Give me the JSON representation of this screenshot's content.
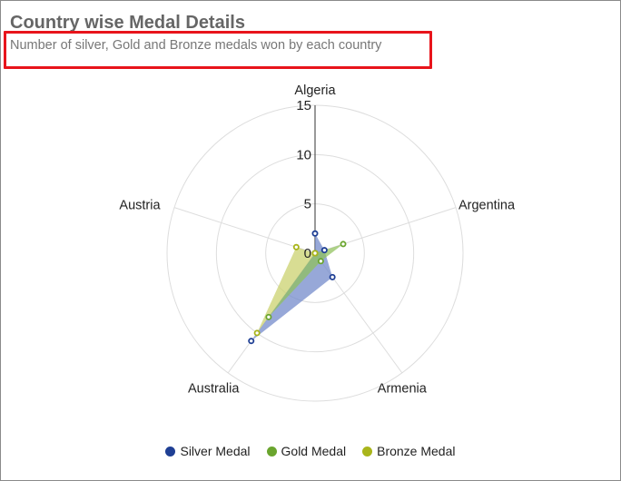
{
  "chart_data": {
    "type": "radar",
    "title": "Country wise Medal Details",
    "subtitle": "Number of silver, Gold and Bronze medals won by each country",
    "categories": [
      "Algeria",
      "Argentina",
      "Armenia",
      "Australia",
      "Austria"
    ],
    "radial_axis": {
      "min": 0,
      "max": 15,
      "ticks": [
        0,
        5,
        10,
        15
      ]
    },
    "grid": true,
    "legend_position": "bottom",
    "series": [
      {
        "name": "Silver Medal",
        "color": "#1f3f94",
        "fill": "#6f87c9",
        "values": [
          2,
          1,
          3,
          11,
          0
        ]
      },
      {
        "name": "Gold Medal",
        "color": "#6aa52e",
        "fill": "#8fc05a",
        "values": [
          0,
          3,
          1,
          8,
          0
        ]
      },
      {
        "name": "Bronze Medal",
        "color": "#a9b51b",
        "fill": "#c9d06a",
        "values": [
          0,
          0,
          0,
          10,
          2
        ]
      }
    ]
  },
  "annotation": {
    "color": "#e8141b"
  }
}
